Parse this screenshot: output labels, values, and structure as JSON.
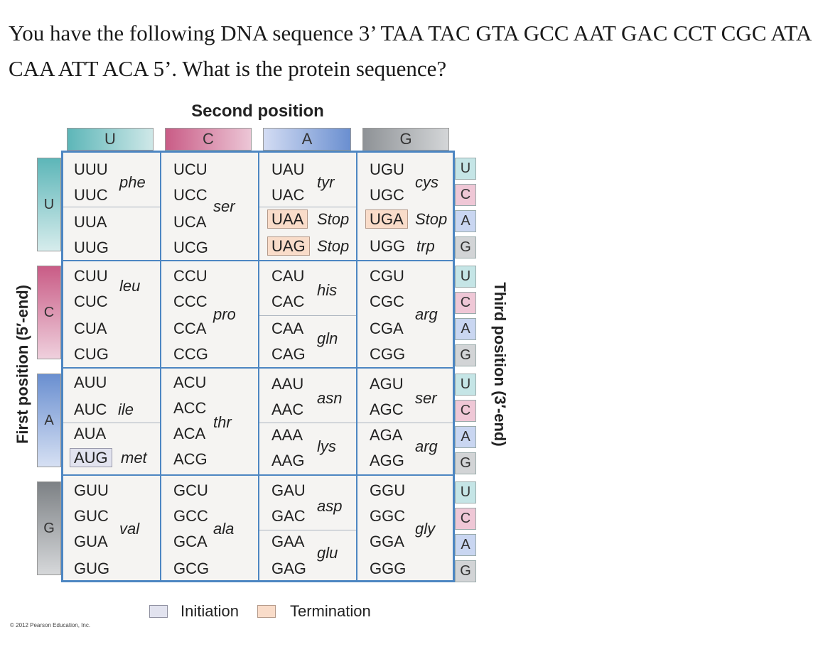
{
  "question": "You have the following DNA sequence 3’ TAA TAC GTA GCC AAT GAC CCT CGC ATA CAA ATT ACA 5’. What is the protein sequence?",
  "table": {
    "second_position_label": "Second position",
    "first_position_label": "First position (5′-end)",
    "third_position_label": "Third position (3′-end)",
    "bases": [
      "U",
      "C",
      "A",
      "G"
    ],
    "colors": {
      "U": "#5db6b8",
      "C": "#c95c86",
      "A": "#6a8fd0",
      "G": "#8e9296"
    },
    "codons": {
      "UUU": "UUU",
      "UUC": "UUC",
      "UUA": "UUA",
      "UUG": "UUG",
      "UCU": "UCU",
      "UCC": "UCC",
      "UCA": "UCA",
      "UCG": "UCG",
      "UAU": "UAU",
      "UAC": "UAC",
      "UAA": "UAA",
      "UAG": "UAG",
      "UGU": "UGU",
      "UGC": "UGC",
      "UGA": "UGA",
      "UGG": "UGG",
      "CUU": "CUU",
      "CUC": "CUC",
      "CUA": "CUA",
      "CUG": "CUG",
      "CCU": "CCU",
      "CCC": "CCC",
      "CCA": "CCA",
      "CCG": "CCG",
      "CAU": "CAU",
      "CAC": "CAC",
      "CAA": "CAA",
      "CAG": "CAG",
      "CGU": "CGU",
      "CGC": "CGC",
      "CGA": "CGA",
      "CGG": "CGG",
      "AUU": "AUU",
      "AUC": "AUC",
      "AUA": "AUA",
      "AUG": "AUG",
      "ACU": "ACU",
      "ACC": "ACC",
      "ACA": "ACA",
      "ACG": "ACG",
      "AAU": "AAU",
      "AAC": "AAC",
      "AAA": "AAA",
      "AAG": "AAG",
      "AGU": "AGU",
      "AGC": "AGC",
      "AGA": "AGA",
      "AGG": "AGG",
      "GUU": "GUU",
      "GUC": "GUC",
      "GUA": "GUA",
      "GUG": "GUG",
      "GCU": "GCU",
      "GCC": "GCC",
      "GCA": "GCA",
      "GCG": "GCG",
      "GAU": "GAU",
      "GAC": "GAC",
      "GAA": "GAA",
      "GAG": "GAG",
      "GGU": "GGU",
      "GGC": "GGC",
      "GGA": "GGA",
      "GGG": "GGG"
    },
    "amino_acids": {
      "phe": "phe",
      "leu": "leu",
      "ser": "ser",
      "tyr": "tyr",
      "stop": "Stop",
      "cys": "cys",
      "trp": "trp",
      "pro": "pro",
      "his": "his",
      "gln": "gln",
      "arg": "arg",
      "ile": "ile",
      "met": "met",
      "thr": "thr",
      "asn": "asn",
      "lys": "lys",
      "val": "val",
      "ala": "ala",
      "asp": "asp",
      "glu": "glu",
      "gly": "gly"
    }
  },
  "legend": {
    "initiation": "Initiation",
    "termination": "Termination",
    "initiation_color": "#e2e3ef",
    "termination_color": "#f9dcc9"
  },
  "copyright": "© 2012 Pearson Education, Inc."
}
